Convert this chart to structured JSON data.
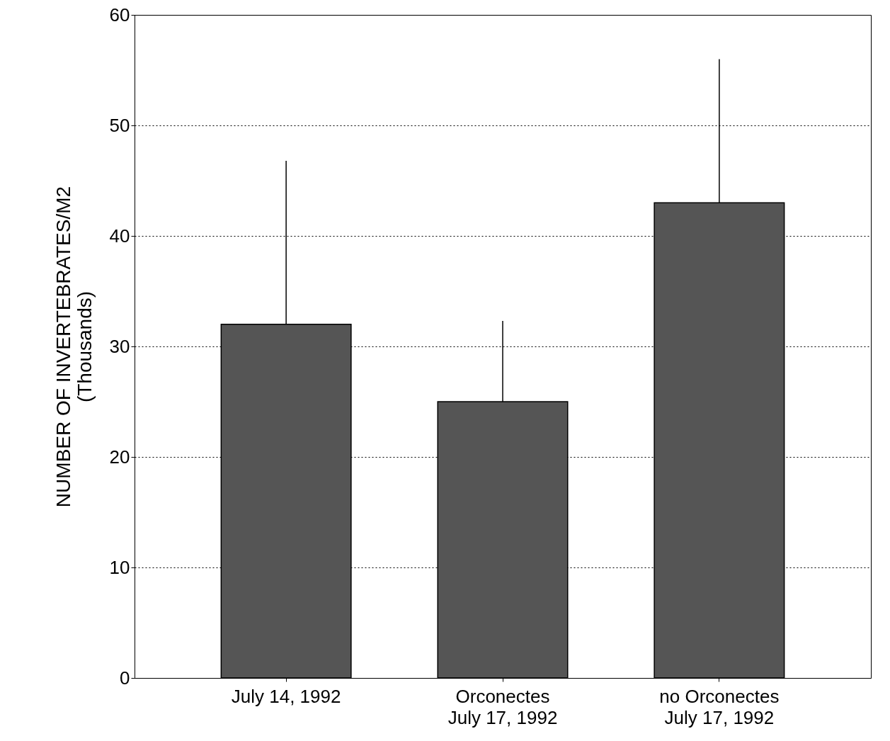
{
  "chart_data": {
    "type": "bar",
    "ylabel": "NUMBER OF INVERTEBRATES/M2\n(Thousands)",
    "categories": [
      "July 14, 1992",
      "Orconectes\nJuly 17, 1992",
      "no Orconectes\nJuly 17, 1992"
    ],
    "values": [
      32,
      25,
      43
    ],
    "color": "#555555",
    "errors": [
      [
        32,
        46.8
      ],
      [
        25,
        32.3
      ],
      [
        43,
        56
      ]
    ],
    "ylim": [
      0,
      60
    ],
    "yticks": [
      0,
      10,
      20,
      30,
      40,
      50,
      60
    ],
    "grid": "y"
  }
}
